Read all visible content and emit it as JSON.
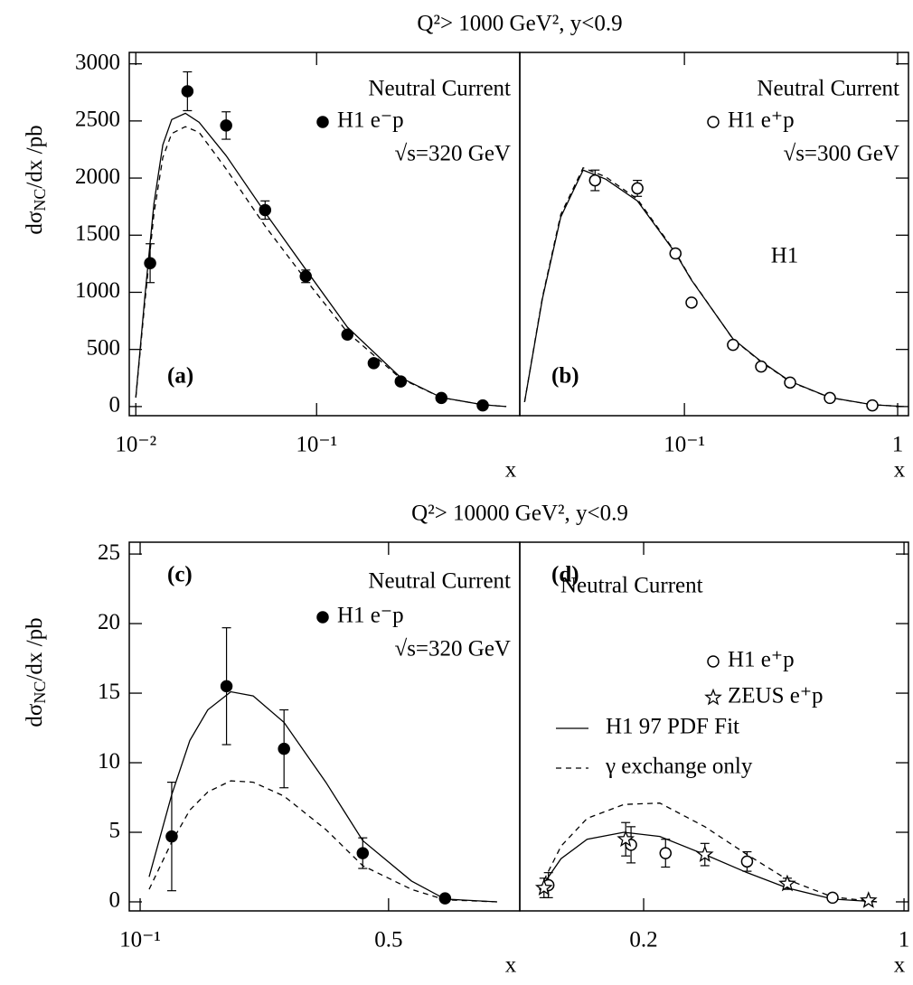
{
  "chart_data": [
    {
      "type": "scatter",
      "title": "Q²> 1000 GeV², y<0.9",
      "ylabel": [
        "dσ",
        "NC",
        "/dx /pb"
      ],
      "xlabel": "x",
      "panel_label": "(a)",
      "annotation": "Neutral Current",
      "energy": "√s=320 GeV",
      "xscale": "log",
      "xlim": [
        0.0092,
        1.33
      ],
      "ylim": [
        -80,
        3100
      ],
      "xticks": [
        {
          "value": 0.01,
          "label": "10⁻²"
        },
        {
          "value": 0.1,
          "label": "10⁻¹"
        }
      ],
      "yticks": [
        0,
        500,
        1000,
        1500,
        2000,
        2500,
        3000
      ],
      "series": [
        {
          "name": "H1 e⁻p",
          "marker": "filled-circle",
          "color": "#000000",
          "x": [
            0.012,
            0.0193,
            0.0316,
            0.0519,
            0.0871,
            0.148,
            0.207,
            0.292,
            0.49,
            0.83
          ],
          "values": [
            1255,
            2760,
            2460,
            1720,
            1140,
            630,
            380,
            220,
            75,
            10
          ],
          "errors": [
            170,
            170,
            120,
            80,
            55,
            30,
            20,
            15,
            8,
            3
          ]
        }
      ],
      "curves": [
        {
          "style": "solid",
          "color": "#000000",
          "x": [
            0.01,
            0.0112,
            0.0126,
            0.0141,
            0.0158,
            0.0188,
            0.0224,
            0.0316,
            0.0519,
            0.0871,
            0.148,
            0.292,
            0.49,
            0.83,
            1.12
          ],
          "values": [
            79,
            948,
            1777,
            2290,
            2512,
            2567,
            2488,
            2196,
            1698,
            1200,
            695,
            253,
            79,
            16,
            0
          ]
        },
        {
          "style": "dashed",
          "color": "#000000",
          "x": [
            0.01,
            0.0112,
            0.0126,
            0.0141,
            0.0158,
            0.0188,
            0.0224,
            0.0316,
            0.0519,
            0.0871,
            0.148,
            0.292,
            0.49,
            0.83,
            1.12
          ],
          "values": [
            79,
            900,
            1690,
            2180,
            2390,
            2450,
            2400,
            2080,
            1580,
            1110,
            650,
            245,
            79,
            16,
            0
          ]
        }
      ]
    },
    {
      "type": "scatter",
      "xlabel": "x",
      "panel_label": "(b)",
      "annotation": "Neutral Current",
      "energy": "√s=300 GeV",
      "logo": "H1",
      "xscale": "log",
      "xlim": [
        0.0169,
        1.124
      ],
      "ylim": [
        -80,
        3100
      ],
      "xticks": [
        {
          "value": 0.1,
          "label": "10⁻¹"
        },
        1
      ],
      "series": [
        {
          "name": "H1 e⁺p",
          "marker": "open-circle",
          "color": "#000000",
          "x": [
            0.0381,
            0.0602,
            0.0908,
            0.108,
            0.169,
            0.229,
            0.313,
            0.481,
            0.761
          ],
          "values": [
            1980,
            1910,
            1340,
            910,
            540,
            350,
            210,
            75,
            10
          ],
          "errors": [
            90,
            70,
            30,
            25,
            20,
            15,
            10,
            6,
            3
          ]
        }
      ],
      "curves": [
        {
          "style": "solid",
          "color": "#000000",
          "x": [
            0.0178,
            0.0216,
            0.0263,
            0.0335,
            0.0428,
            0.0602,
            0.0908,
            0.108,
            0.169,
            0.229,
            0.313,
            0.481,
            0.761,
            1.07
          ],
          "values": [
            40,
            948,
            1659,
            2070,
            1990,
            1800,
            1343,
            1106,
            592,
            395,
            221,
            79,
            16,
            0
          ]
        },
        {
          "style": "dashed",
          "color": "#000000",
          "x": [
            0.0178,
            0.0216,
            0.0263,
            0.0335,
            0.0428,
            0.0602,
            0.0908,
            0.108,
            0.169,
            0.229,
            0.313,
            0.481,
            0.761,
            1.07
          ],
          "values": [
            40,
            960,
            1680,
            2090,
            2010,
            1815,
            1350,
            1110,
            590,
            390,
            218,
            78,
            16,
            0
          ]
        }
      ]
    },
    {
      "type": "scatter",
      "title": "Q²> 10000 GeV², y<0.9",
      "ylabel": [
        "dσ",
        "NC",
        "/dx /pb"
      ],
      "xlabel": "x",
      "panel_label": "(c)",
      "annotation": "Neutral Current",
      "energy": "√s=320 GeV",
      "xscale": "log",
      "xlim": [
        0.0932,
        1.17
      ],
      "ylim": [
        -0.65,
        25.85
      ],
      "xticks": [
        {
          "value": 0.1,
          "label": "10⁻¹"
        },
        0.5
      ],
      "yticks": [
        0,
        5,
        10,
        15,
        20,
        25
      ],
      "series": [
        {
          "name": "H1 e⁻p",
          "marker": "filled-circle",
          "color": "#000000",
          "x": [
            0.1227,
            0.175,
            0.254,
            0.423,
            0.721
          ],
          "values": [
            4.7,
            15.5,
            11.0,
            3.5,
            0.25
          ],
          "errors": [
            3.9,
            4.2,
            2.8,
            1.1,
            0.1
          ]
        }
      ],
      "curves": [
        {
          "style": "solid",
          "color": "#000000",
          "x": [
            0.106,
            0.1227,
            0.138,
            0.155,
            0.18,
            0.208,
            0.254,
            0.333,
            0.423,
            0.58,
            0.721,
            1.01
          ],
          "values": [
            1.8,
            7.7,
            11.6,
            13.8,
            15.1,
            14.8,
            12.9,
            8.6,
            4.4,
            1.5,
            0.2,
            0
          ]
        },
        {
          "style": "dashed",
          "color": "#000000",
          "x": [
            0.106,
            0.1227,
            0.138,
            0.155,
            0.18,
            0.208,
            0.254,
            0.333,
            0.423,
            0.58,
            0.721,
            1.01
          ],
          "values": [
            0.9,
            4.3,
            6.6,
            7.9,
            8.7,
            8.6,
            7.6,
            5.2,
            2.6,
            0.9,
            0.15,
            0
          ]
        }
      ]
    },
    {
      "type": "scatter",
      "xlabel": "x",
      "panel_label": "(d)",
      "annotation": "Neutral Current",
      "xscale": "log",
      "xlim": [
        0.093,
        1.028
      ],
      "ylim": [
        -0.65,
        25.85
      ],
      "xticks": [
        0.2,
        1
      ],
      "series": [
        {
          "name": "H1 e⁺p",
          "marker": "open-circle",
          "color": "#000000",
          "x": [
            0.111,
            0.185,
            0.229,
            0.379,
            0.643
          ],
          "values": [
            1.2,
            4.1,
            3.5,
            2.9,
            0.3
          ],
          "errors": [
            0.9,
            1.3,
            1.0,
            0.7,
            0.1
          ]
        },
        {
          "name": "ZEUS e⁺p",
          "marker": "star",
          "color": "#000000",
          "x": [
            0.108,
            0.179,
            0.292,
            0.486,
            0.803
          ],
          "values": [
            1.0,
            4.5,
            3.4,
            1.3,
            0.1
          ],
          "errors": [
            0.7,
            1.2,
            0.8,
            0.4,
            0.1
          ]
        }
      ],
      "curves": [
        {
          "name": "H1 97 PDF Fit",
          "style": "solid",
          "color": "#000000",
          "x": [
            0.105,
            0.12,
            0.141,
            0.177,
            0.221,
            0.292,
            0.379,
            0.486,
            0.643,
            0.846
          ],
          "values": [
            0.85,
            3.1,
            4.5,
            5.0,
            4.7,
            3.4,
            2.1,
            1.0,
            0.2,
            0
          ]
        },
        {
          "name": "γ exchange only",
          "style": "dashed",
          "color": "#000000",
          "x": [
            0.105,
            0.12,
            0.141,
            0.177,
            0.221,
            0.292,
            0.379,
            0.486,
            0.643,
            0.846
          ],
          "values": [
            0.9,
            4.0,
            6.0,
            7.0,
            7.1,
            5.4,
            3.4,
            1.6,
            0.35,
            0
          ]
        }
      ]
    }
  ]
}
